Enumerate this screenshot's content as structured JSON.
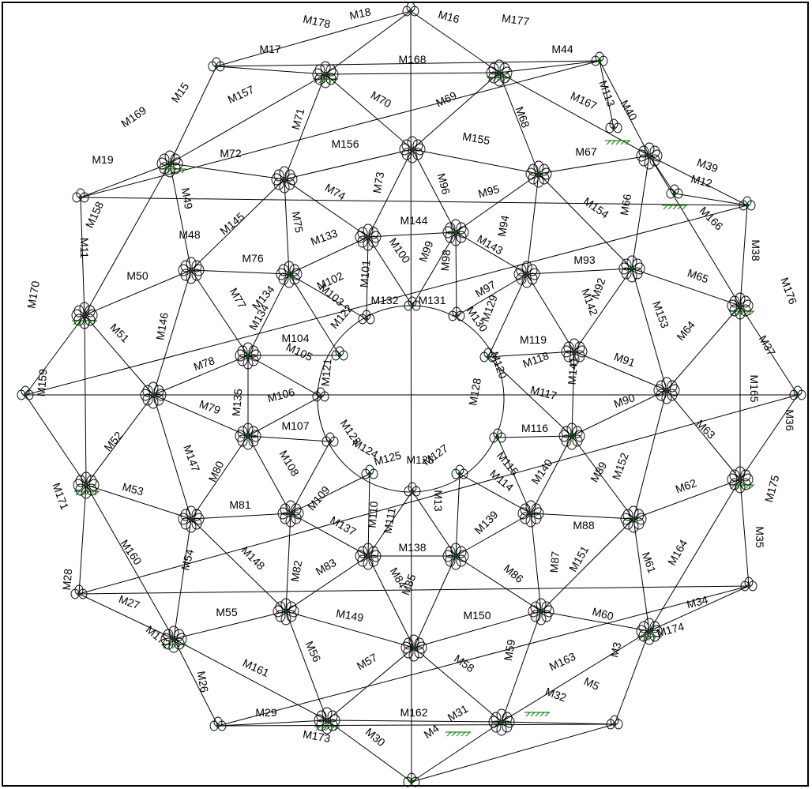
{
  "colors": {
    "line": "#000000",
    "node_dot": "#0a4d0a",
    "support": "#1f8a1f",
    "background": "#ffffff"
  },
  "icons": {
    "node": "node-hinge-icon",
    "support": "fixed-support-icon"
  },
  "diagram": {
    "member_labels": [
      "M178",
      "M18",
      "M177",
      "M16",
      "M17",
      "M168",
      "M44",
      "M169",
      "M15",
      "M157",
      "M70",
      "M69",
      "M167",
      "M40",
      "M113",
      "M71",
      "M68",
      "M19",
      "M72",
      "M156",
      "M155",
      "M67",
      "M73",
      "M96",
      "M39",
      "M12",
      "M158",
      "M49",
      "M74",
      "M95",
      "M154",
      "M66",
      "M166",
      "M145",
      "M75",
      "M144",
      "M94",
      "M11",
      "M48",
      "M133",
      "M100",
      "M99",
      "M98",
      "M143",
      "M38",
      "M50",
      "M76",
      "M101",
      "M93",
      "M65",
      "M176",
      "M170",
      "M77",
      "M134",
      "M102",
      "M103",
      "M97",
      "M142",
      "M92",
      "M153",
      "M51",
      "M146",
      "M122",
      "M134",
      "M132",
      "M131",
      "M130",
      "M129",
      "M119",
      "M104",
      "M64",
      "M37",
      "M105",
      "M121",
      "M118",
      "M91",
      "M78",
      "M159",
      "M141",
      "M106",
      "M117",
      "M165",
      "M79",
      "M135",
      "M120",
      "M128",
      "M90",
      "M52",
      "M107",
      "M123",
      "M116",
      "M63",
      "M36",
      "M147",
      "M124",
      "M127",
      "M80",
      "M126",
      "M125",
      "M108",
      "M115",
      "M140",
      "M152",
      "M89",
      "M62",
      "M175",
      "M53",
      "M109",
      "M114",
      "M13",
      "M171",
      "M81",
      "M110",
      "M111",
      "M139",
      "M88",
      "M160",
      "M137",
      "M35",
      "M54",
      "M82",
      "M138",
      "M61",
      "M164",
      "M148",
      "M87",
      "M151",
      "M28",
      "M83",
      "M84",
      "M85",
      "M86",
      "M34",
      "M27",
      "M60",
      "M55",
      "M149",
      "M150",
      "M174",
      "M172",
      "M56",
      "M163",
      "M58",
      "M59",
      "M57",
      "M161",
      "M26",
      "M3",
      "M5",
      "M32",
      "M29",
      "M162",
      "M173",
      "M30",
      "M4",
      "M31"
    ]
  }
}
